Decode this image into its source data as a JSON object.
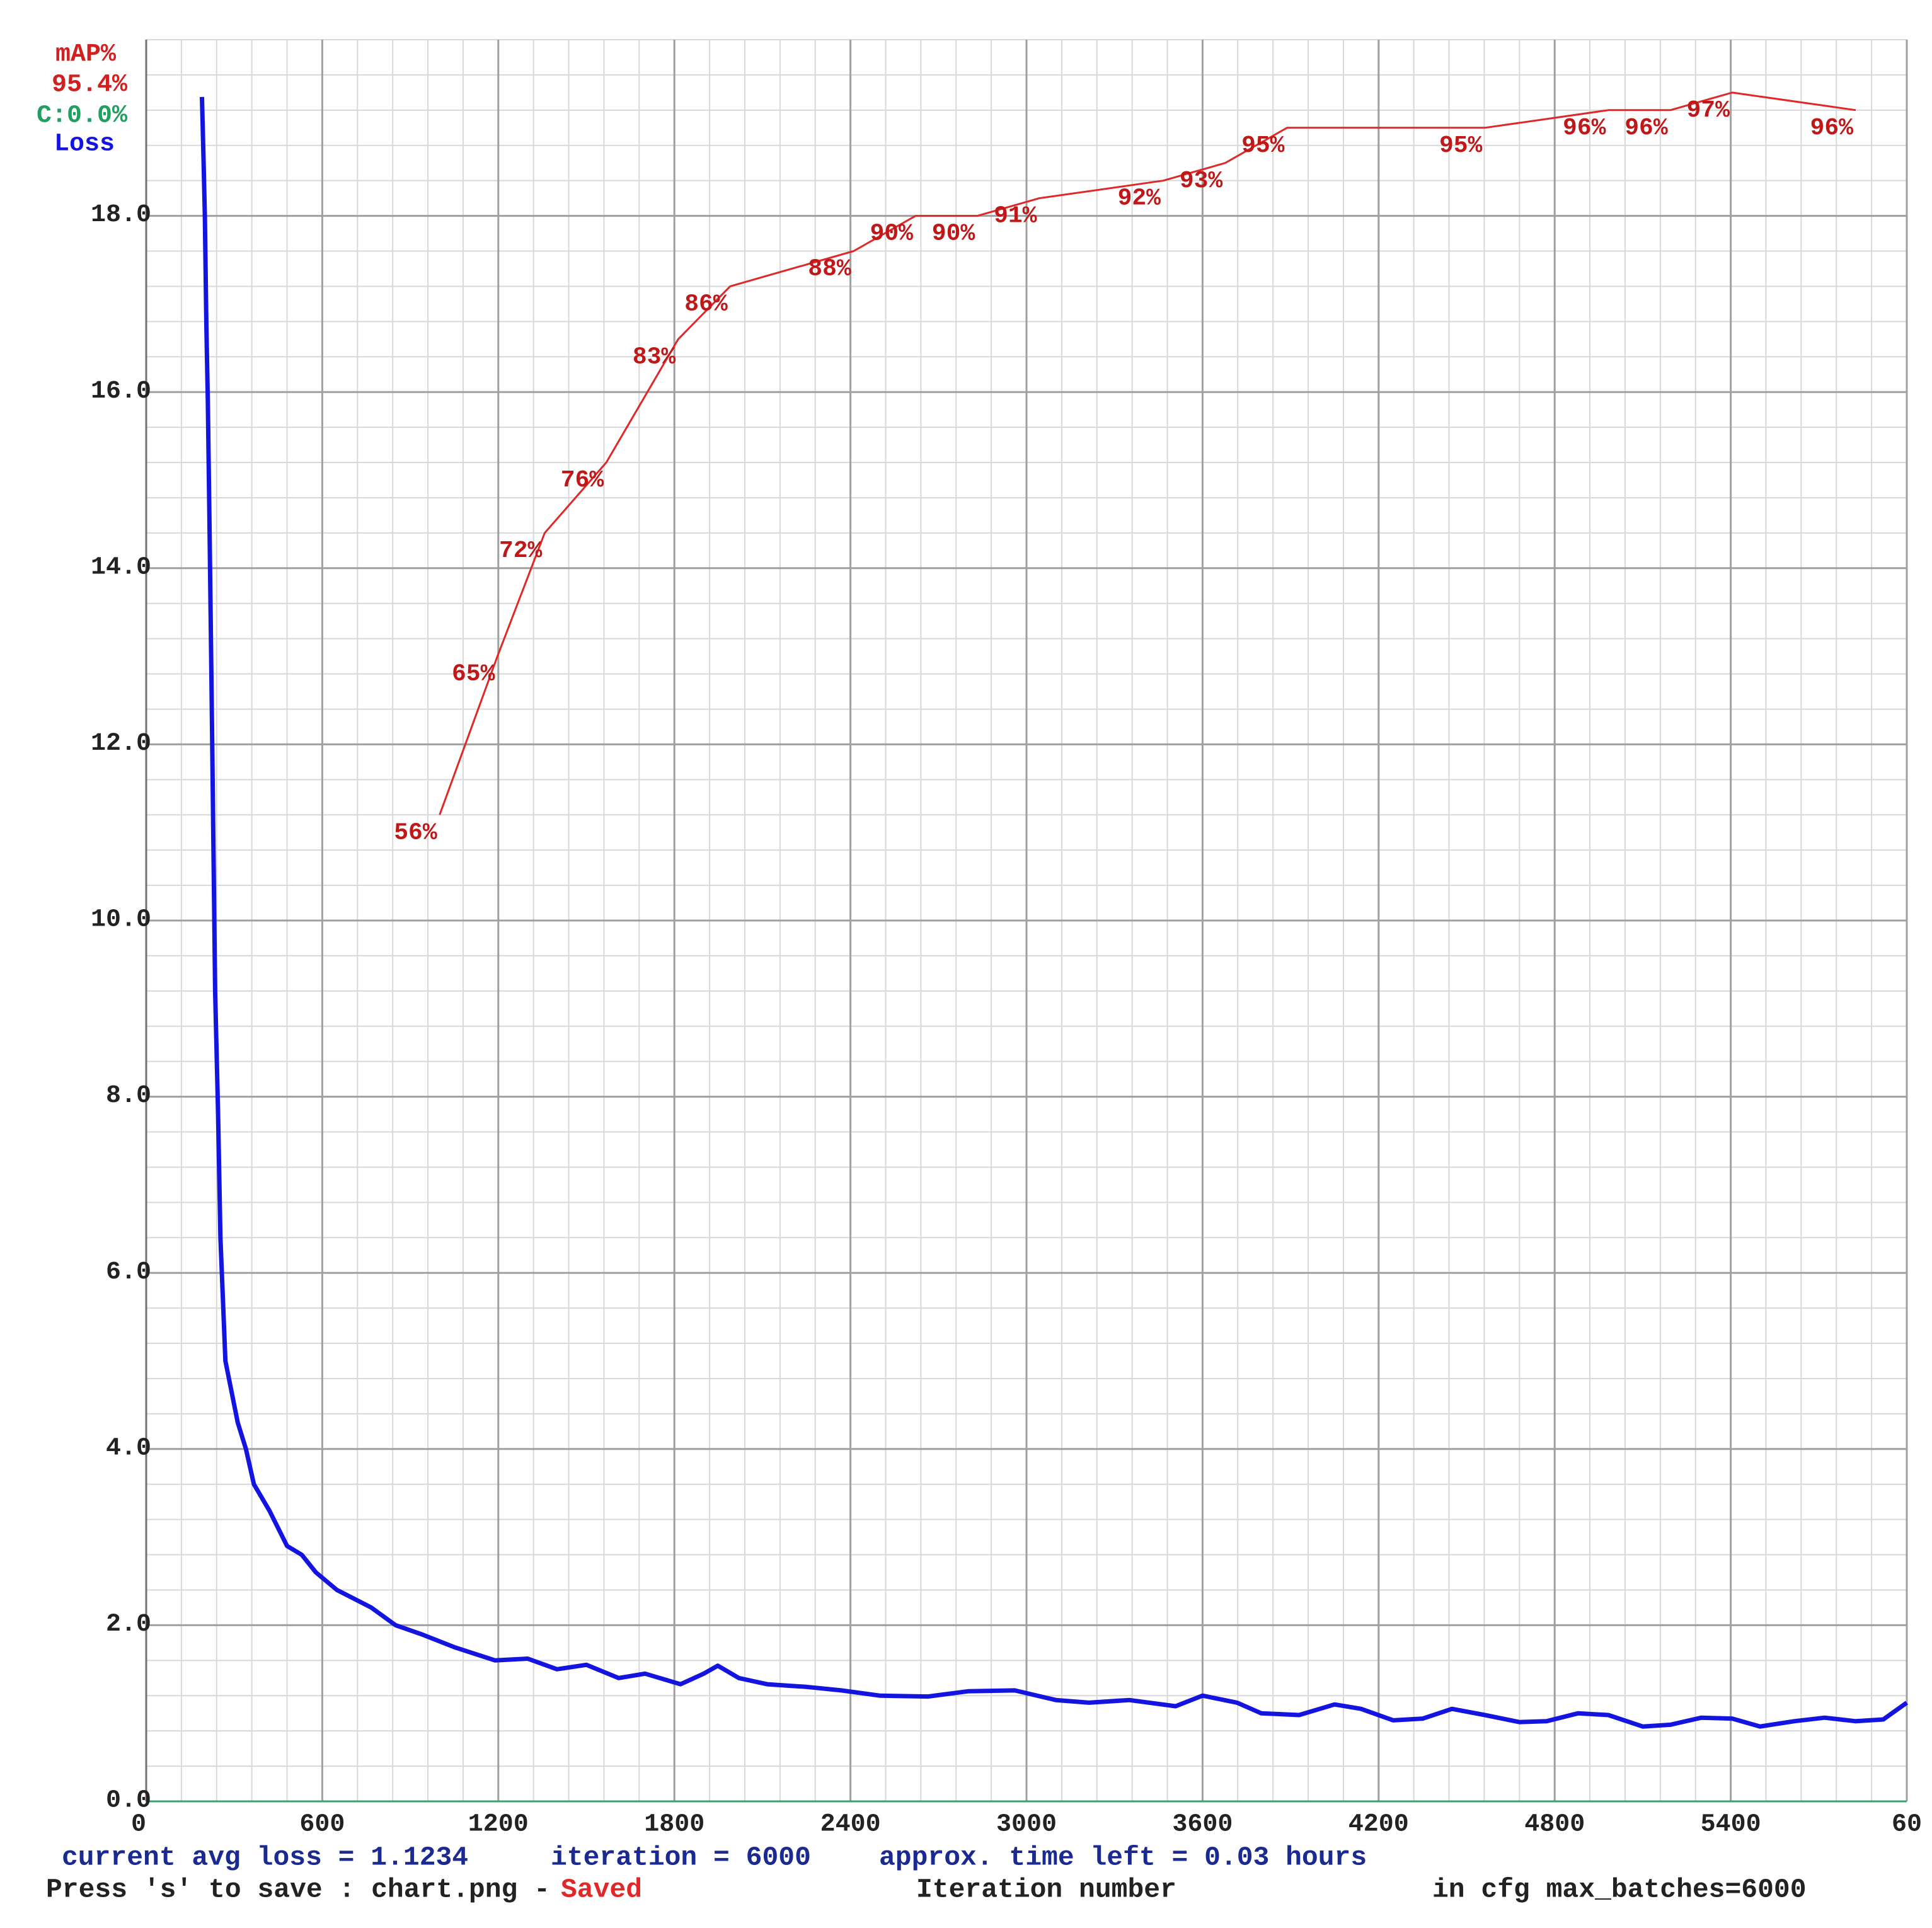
{
  "chart_data": {
    "type": "line",
    "xlabel": "Iteration number",
    "xlim": [
      0,
      6000
    ],
    "xticks": [
      0,
      600,
      1200,
      1800,
      2400,
      3000,
      3600,
      4200,
      4800,
      5400,
      {
        "value": 6000,
        "label": "60"
      }
    ],
    "ylim": [
      0,
      20
    ],
    "yticks": [
      {
        "value": 0,
        "label": "0.0"
      },
      {
        "value": 2,
        "label": "2.0"
      },
      {
        "value": 4,
        "label": "4.0"
      },
      {
        "value": 6,
        "label": "6.0"
      },
      {
        "value": 8,
        "label": "8.0"
      },
      {
        "value": 10,
        "label": "10.0"
      },
      {
        "value": 12,
        "label": "12.0"
      },
      {
        "value": 14,
        "label": "14.0"
      },
      {
        "value": 16,
        "label": "16.0"
      },
      {
        "value": 18,
        "label": "18.0"
      }
    ],
    "y2lim": [
      0,
      100
    ],
    "grid": true,
    "series": [
      {
        "name": "Loss",
        "color": "#1414e0",
        "x": [
          190,
          195,
          200,
          205,
          210,
          215,
          220,
          225,
          230,
          235,
          245,
          253,
          270,
          312,
          340,
          367,
          420,
          480,
          530,
          578,
          650,
          767,
          850,
          936,
          1050,
          1189,
          1300,
          1400,
          1500,
          1610,
          1700,
          1821,
          1900,
          1948,
          2020,
          2116,
          2250,
          2369,
          2500,
          2664,
          2800,
          2960,
          3100,
          3213,
          3350,
          3508,
          3600,
          3718,
          3800,
          3929,
          4050,
          4140,
          4250,
          4351,
          4450,
          4562,
          4680,
          4772,
          4880,
          4983,
          5100,
          5194,
          5300,
          5405,
          5500,
          5616,
          5720,
          5826,
          5920,
          6000
        ],
        "values": [
          19.35,
          18.7,
          18.0,
          16.75,
          15.9,
          14.7,
          13.4,
          12.0,
          10.6,
          9.2,
          7.8,
          6.4,
          5.0,
          4.3,
          4.0,
          3.6,
          3.3,
          2.9,
          2.8,
          2.6,
          2.4,
          2.2,
          2.0,
          1.9,
          1.75,
          1.6,
          1.62,
          1.5,
          1.55,
          1.4,
          1.45,
          1.33,
          1.45,
          1.54,
          1.4,
          1.33,
          1.3,
          1.26,
          1.2,
          1.19,
          1.25,
          1.26,
          1.15,
          1.12,
          1.15,
          1.08,
          1.2,
          1.12,
          1.0,
          0.98,
          1.1,
          1.05,
          0.92,
          0.94,
          1.05,
          0.98,
          0.9,
          0.91,
          1.0,
          0.98,
          0.85,
          0.87,
          0.95,
          0.94,
          0.85,
          0.91,
          0.95,
          0.91,
          0.93,
          1.12
        ]
      },
      {
        "name": "mAP%",
        "color": "#e02828",
        "axis": "y2",
        "x": [
          1000,
          1197,
          1358,
          1568,
          1813,
          1990,
          2411,
          2622,
          2833,
          3044,
          3466,
          3677,
          3888,
          4562,
          4983,
          5194,
          5405,
          5826
        ],
        "values": [
          56,
          65,
          72,
          76,
          83,
          86,
          88,
          90,
          90,
          91,
          92,
          93,
          95,
          95,
          96,
          96,
          97,
          96
        ],
        "value_labels": [
          "56%",
          "65%",
          "72%",
          "76%",
          "83%",
          "86%",
          "88%",
          "90%",
          "90%",
          "91%",
          "92%",
          "93%",
          "95%",
          "95%",
          "96%",
          "96%",
          "97%",
          "96%"
        ]
      }
    ],
    "annotations": [
      "95.4%",
      "C:0.0%"
    ],
    "status_lines": [
      "current avg loss = 1.1234",
      "iteration = 6000",
      "approx. time left = 0.03 hours",
      "Press 's' to save : chart.png -",
      "Saved",
      "in cfg max_batches=6000"
    ]
  }
}
